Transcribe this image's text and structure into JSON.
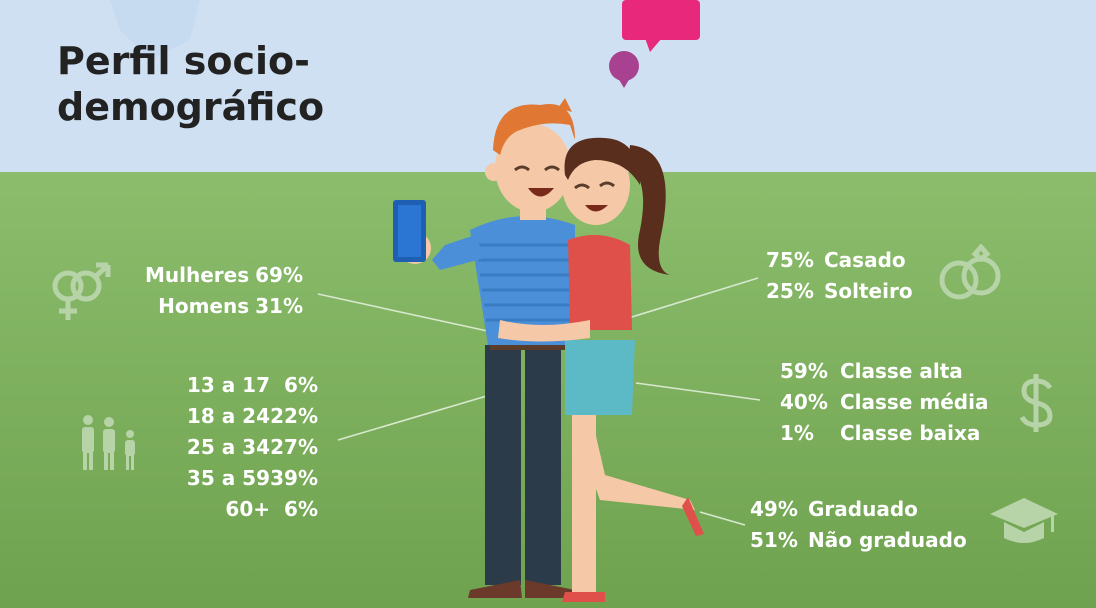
{
  "title": "Perfil socio-demográfico",
  "gender": [
    {
      "label": "Mulheres",
      "pct": "69%"
    },
    {
      "label": "Homens",
      "pct": "31%"
    }
  ],
  "age": [
    {
      "range": "13 a 17",
      "pct": "6%"
    },
    {
      "range": "18 a 24",
      "pct": "22%"
    },
    {
      "range": "25 a 34",
      "pct": "27%"
    },
    {
      "range": "35 a 59",
      "pct": "39%"
    },
    {
      "range": "60+",
      "pct": "6%"
    }
  ],
  "marital": [
    {
      "pct": "75%",
      "label": "Casado"
    },
    {
      "pct": "25%",
      "label": "Solteiro"
    }
  ],
  "social_class": [
    {
      "pct": "59%",
      "label": "Classe alta"
    },
    {
      "pct": "40%",
      "label": "Classe média"
    },
    {
      "pct": "1%",
      "label": "Classe baixa"
    }
  ],
  "education": [
    {
      "pct": "49%",
      "label": "Graduado"
    },
    {
      "pct": "51%",
      "label": "Não graduado"
    }
  ],
  "icons": [
    "gender-icon",
    "people-icon",
    "rings-icon",
    "dollar-icon",
    "graduation-cap-icon",
    "speech-bubble-icon"
  ],
  "colors": {
    "sky": "#cfe0f3",
    "grass": "#7fb05e",
    "text": "#ffffff",
    "title": "#222222",
    "bubble_pink": "#e8297b",
    "bubble_purple": "#a8418f"
  }
}
